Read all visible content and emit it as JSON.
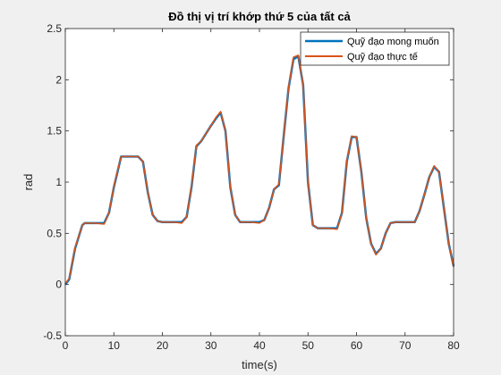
{
  "chart_data": {
    "type": "line",
    "title": "Đồ thị vị trí khớp thứ 5 của tất cả",
    "xlabel": "time(s)",
    "ylabel": "rad",
    "xlim": [
      0,
      80
    ],
    "ylim": [
      -0.5,
      2.5
    ],
    "xticks": [
      "0",
      "10",
      "20",
      "30",
      "40",
      "50",
      "60",
      "70",
      "80"
    ],
    "yticks": [
      "-0.5",
      "0",
      "0.5",
      "1",
      "1.5",
      "2",
      "2.5"
    ],
    "legend_position": "top-right",
    "series": [
      {
        "name": "Quỹ đạo mong muốn",
        "color": "#0072BD",
        "x": [
          0,
          0.8,
          2,
          3.5,
          4,
          6,
          8,
          9,
          10,
          11,
          11.5,
          13,
          15,
          16,
          17,
          18,
          19,
          20,
          22,
          24,
          25,
          26,
          27,
          28,
          30,
          31,
          32,
          33,
          34,
          35,
          36,
          38,
          40,
          41,
          42,
          43,
          44,
          45,
          46,
          47,
          48,
          49,
          50,
          51,
          52,
          54,
          56,
          57,
          58,
          59,
          60,
          61,
          62,
          63,
          64,
          65,
          66,
          67,
          68,
          70,
          72,
          73,
          74,
          75,
          76,
          77,
          78,
          79,
          80
        ],
        "y": [
          0,
          0.05,
          0.35,
          0.58,
          0.6,
          0.6,
          0.6,
          0.7,
          0.95,
          1.15,
          1.25,
          1.25,
          1.25,
          1.2,
          0.9,
          0.68,
          0.62,
          0.61,
          0.61,
          0.61,
          0.66,
          0.95,
          1.35,
          1.4,
          1.55,
          1.62,
          1.68,
          1.5,
          0.95,
          0.68,
          0.61,
          0.61,
          0.61,
          0.63,
          0.75,
          0.93,
          0.97,
          1.45,
          1.92,
          2.2,
          2.23,
          1.95,
          1.0,
          0.58,
          0.55,
          0.55,
          0.55,
          0.7,
          1.2,
          1.44,
          1.44,
          1.1,
          0.65,
          0.4,
          0.3,
          0.35,
          0.5,
          0.6,
          0.61,
          0.61,
          0.61,
          0.72,
          0.88,
          1.05,
          1.15,
          1.1,
          0.75,
          0.4,
          0.18
        ]
      },
      {
        "name": "Quỹ đạo thực tế",
        "color": "#D95319",
        "x": [
          0,
          0.8,
          2,
          3.5,
          4,
          6,
          8,
          9,
          10,
          11,
          11.5,
          13,
          15,
          16,
          17,
          18,
          19,
          20,
          22,
          24,
          25,
          26,
          27,
          28,
          30,
          31,
          32,
          33,
          34,
          35,
          36,
          38,
          40,
          41,
          42,
          43,
          44,
          45,
          46,
          47,
          48,
          49,
          50,
          51,
          52,
          54,
          56,
          57,
          58,
          59,
          60,
          61,
          62,
          63,
          64,
          65,
          66,
          67,
          68,
          70,
          72,
          73,
          74,
          75,
          76,
          77,
          78,
          79,
          80
        ],
        "y": [
          0.01,
          0.06,
          0.36,
          0.58,
          0.6,
          0.6,
          0.59,
          0.7,
          0.96,
          1.16,
          1.25,
          1.25,
          1.25,
          1.2,
          0.9,
          0.68,
          0.62,
          0.61,
          0.61,
          0.6,
          0.66,
          0.96,
          1.36,
          1.4,
          1.55,
          1.63,
          1.69,
          1.5,
          0.95,
          0.68,
          0.61,
          0.61,
          0.6,
          0.63,
          0.75,
          0.93,
          0.98,
          1.45,
          1.93,
          2.22,
          2.24,
          1.95,
          1.0,
          0.58,
          0.55,
          0.55,
          0.54,
          0.7,
          1.21,
          1.45,
          1.44,
          1.1,
          0.65,
          0.4,
          0.29,
          0.35,
          0.5,
          0.6,
          0.61,
          0.61,
          0.61,
          0.72,
          0.88,
          1.05,
          1.16,
          1.1,
          0.75,
          0.4,
          0.17
        ]
      }
    ]
  }
}
